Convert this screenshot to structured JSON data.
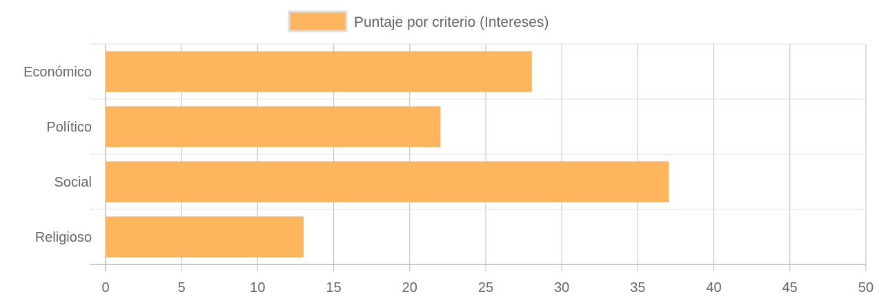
{
  "chart_data": {
    "type": "bar",
    "orientation": "horizontal",
    "categories": [
      "Económico",
      "Político",
      "Social",
      "Religioso"
    ],
    "series": [
      {
        "name": "Puntaje por criterio (Intereses)",
        "values": [
          28,
          22,
          37,
          13
        ]
      }
    ],
    "x_ticks": [
      "0",
      "5",
      "10",
      "15",
      "20",
      "25",
      "30",
      "35",
      "40",
      "45",
      "50"
    ],
    "xlim": [
      0,
      50
    ],
    "grid": true,
    "legend_position": "top-center",
    "colors": {
      "bar": "#fdb55e",
      "bar_border": "#ffa94d",
      "grid": "#bdbdbd",
      "text": "#666666"
    }
  }
}
